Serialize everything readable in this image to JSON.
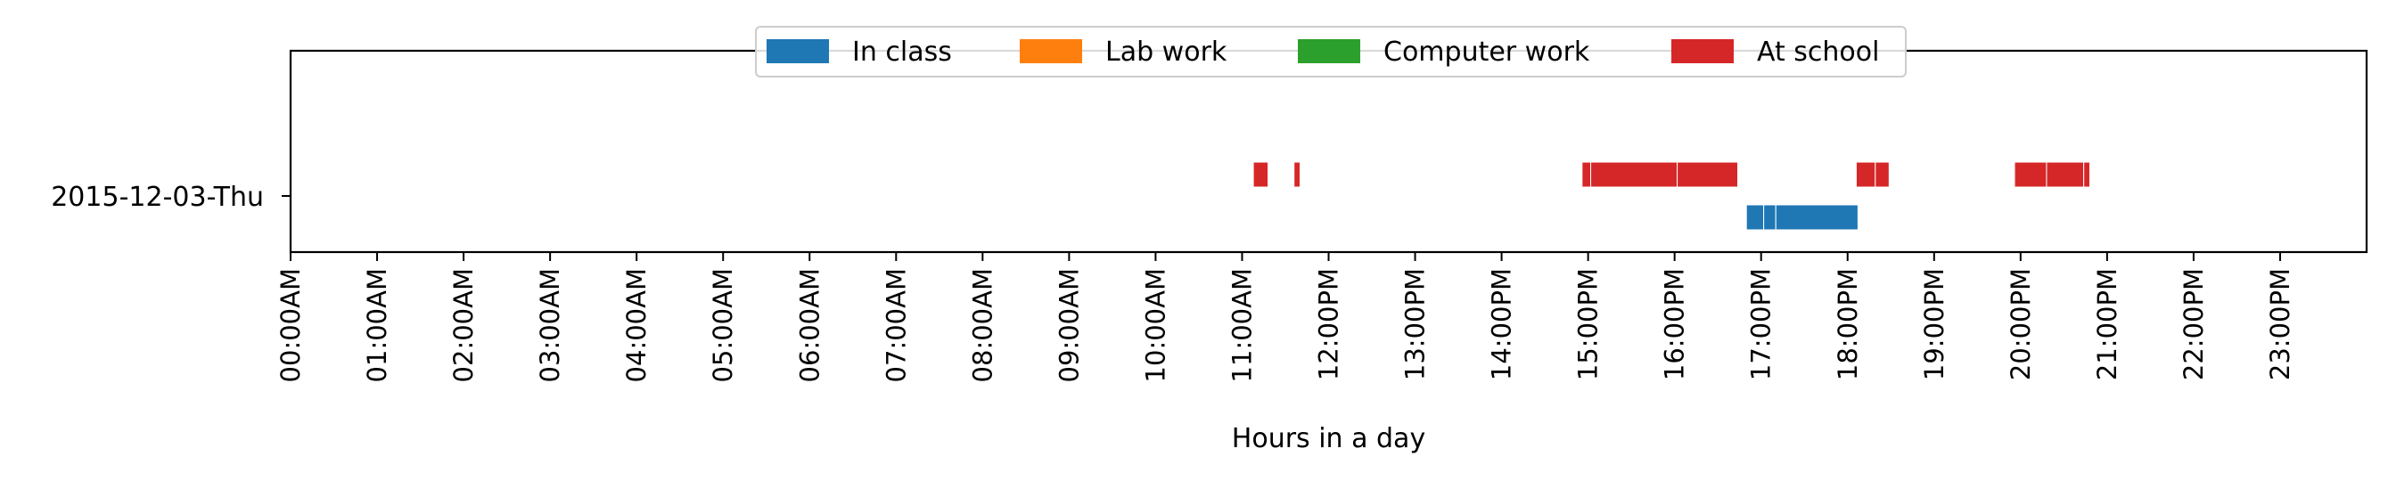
{
  "chart_data": {
    "type": "timeline",
    "title": "",
    "xlabel": "Hours in a day",
    "ylabel": "",
    "xlim": [
      0,
      24
    ],
    "x_ticks": [
      {
        "value": 0,
        "label": "00:00AM"
      },
      {
        "value": 1,
        "label": "01:00AM"
      },
      {
        "value": 2,
        "label": "02:00AM"
      },
      {
        "value": 3,
        "label": "03:00AM"
      },
      {
        "value": 4,
        "label": "04:00AM"
      },
      {
        "value": 5,
        "label": "05:00AM"
      },
      {
        "value": 6,
        "label": "06:00AM"
      },
      {
        "value": 7,
        "label": "07:00AM"
      },
      {
        "value": 8,
        "label": "08:00AM"
      },
      {
        "value": 9,
        "label": "09:00AM"
      },
      {
        "value": 10,
        "label": "10:00AM"
      },
      {
        "value": 11,
        "label": "11:00AM"
      },
      {
        "value": 12,
        "label": "12:00PM"
      },
      {
        "value": 13,
        "label": "13:00PM"
      },
      {
        "value": 14,
        "label": "14:00PM"
      },
      {
        "value": 15,
        "label": "15:00PM"
      },
      {
        "value": 16,
        "label": "16:00PM"
      },
      {
        "value": 17,
        "label": "17:00PM"
      },
      {
        "value": 18,
        "label": "18:00PM"
      },
      {
        "value": 19,
        "label": "19:00PM"
      },
      {
        "value": 20,
        "label": "20:00PM"
      },
      {
        "value": 21,
        "label": "21:00PM"
      },
      {
        "value": 22,
        "label": "22:00PM"
      },
      {
        "value": 23,
        "label": "23:00PM"
      }
    ],
    "categories": [
      "2015-12-03-Thu"
    ],
    "grid": false,
    "legend_position": "top-center",
    "series": [
      {
        "name": "In class",
        "color": "#1f77b4",
        "segments": [
          [
            16.83,
            17.03
          ],
          [
            17.03,
            17.17
          ],
          [
            17.17,
            18.12
          ]
        ]
      },
      {
        "name": "Lab work",
        "color": "#ff7f0e",
        "segments": []
      },
      {
        "name": "Computer work",
        "color": "#2ca02c",
        "segments": []
      },
      {
        "name": "At school",
        "color": "#d62728",
        "segments": [
          [
            11.13,
            11.3
          ],
          [
            11.6,
            11.67
          ],
          [
            14.93,
            15.03
          ],
          [
            15.03,
            16.03
          ],
          [
            16.03,
            16.73
          ],
          [
            18.1,
            18.32
          ],
          [
            18.32,
            18.48
          ],
          [
            19.93,
            20.3
          ],
          [
            20.3,
            20.73
          ],
          [
            20.73,
            20.8
          ]
        ]
      }
    ]
  }
}
